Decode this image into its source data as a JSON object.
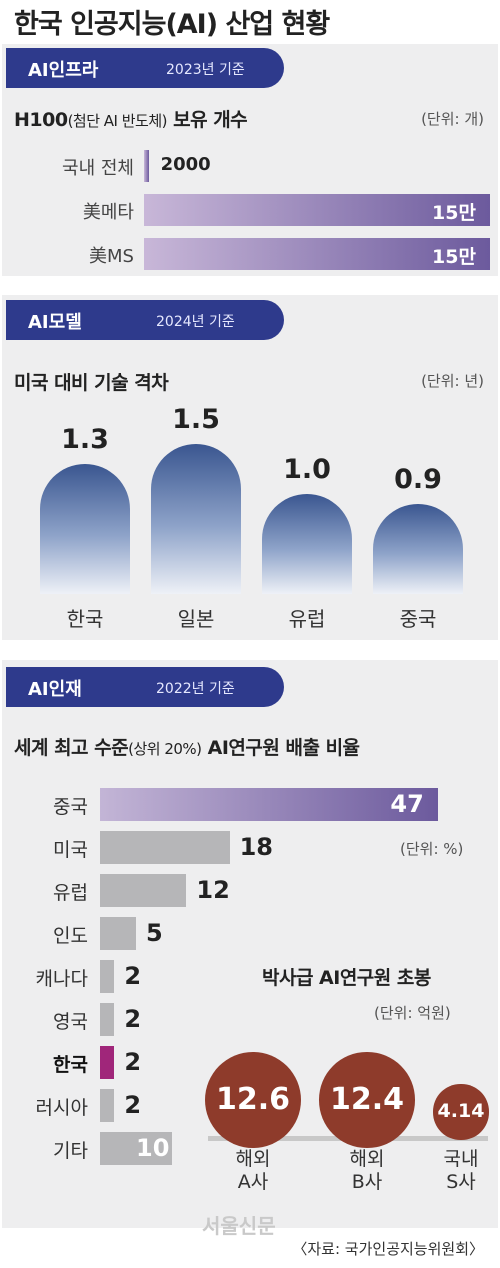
{
  "title": "한국 인공지능(AI) 산업 현황",
  "sections": [
    {
      "tag": "AI인프라",
      "basis": "2023년 기준",
      "subtitle_main": "H100",
      "subtitle_paren": "(첨단 AI 반도체)",
      "subtitle_tail": " 보유 개수",
      "unit": "(단위: 개)"
    },
    {
      "tag": "AI모델",
      "basis": "2024년 기준",
      "subtitle": "미국 대비 기술 격차",
      "unit": "(단위: 년)"
    },
    {
      "tag": "AI인재",
      "basis": "2022년 기준",
      "subtitle_main": "세계 최고 수준",
      "subtitle_paren": "(상위 20%)",
      "subtitle_tail": " AI연구원 배출 비율",
      "unit": "(단위: %)"
    }
  ],
  "chart_data": [
    {
      "type": "bar",
      "title": "H100(첨단 AI 반도체) 보유 개수",
      "unit": "개",
      "categories": [
        "국내 전체",
        "美메타",
        "美MS"
      ],
      "values": [
        2000,
        150000,
        150000
      ],
      "labels": [
        "2000",
        "15만",
        "15만"
      ]
    },
    {
      "type": "bar",
      "title": "미국 대비 기술 격차",
      "unit": "년",
      "categories": [
        "한국",
        "일본",
        "유럽",
        "중국"
      ],
      "values": [
        1.3,
        1.5,
        1.0,
        0.9
      ],
      "labels": [
        "1.3",
        "1.5",
        "1.0",
        "0.9"
      ]
    },
    {
      "type": "bar",
      "title": "세계 최고 수준(상위 20%) AI연구원 배출 비율",
      "unit": "%",
      "categories": [
        "중국",
        "미국",
        "유럽",
        "인도",
        "캐나다",
        "영국",
        "한국",
        "러시아",
        "기타"
      ],
      "values": [
        47,
        18,
        12,
        5,
        2,
        2,
        2,
        2,
        10
      ],
      "highlight": "한국",
      "colors": {
        "top": "#6c5a9d",
        "default": "#b6b6b8",
        "highlight": "#a0267a"
      }
    },
    {
      "type": "bar",
      "title": "박사급 AI연구원 초봉",
      "unit": "억원",
      "categories": [
        "해외 A사",
        "해외 B사",
        "국내 S사"
      ],
      "category_lines": [
        [
          "해외",
          "A사"
        ],
        [
          "해외",
          "B사"
        ],
        [
          "국내",
          "S사"
        ]
      ],
      "values": [
        12.6,
        12.4,
        4.14
      ],
      "labels": [
        "12.6",
        "12.4",
        "4.14"
      ],
      "color": "#8e3b2b"
    }
  ],
  "salary": {
    "title": "박사급 AI연구원 초봉",
    "unit": "(단위: 억원)"
  },
  "watermark": "서울신문",
  "source": "〈자료: 국가인공지능위원회〉"
}
